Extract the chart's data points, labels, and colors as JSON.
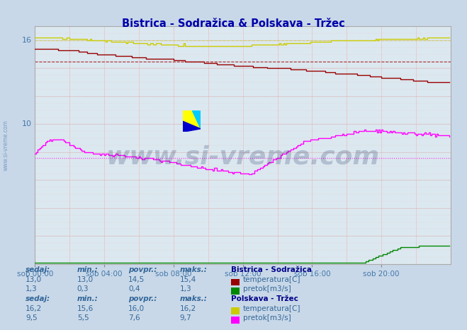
{
  "title": "Bistrica - Sodražica & Polskava - Tržec",
  "title_color": "#0000aa",
  "bg_color": "#c8d8e8",
  "plot_bg_color": "#dce8f0",
  "x_label_color": "#4477aa",
  "y_label_color": "#4477aa",
  "xlim": [
    0,
    288
  ],
  "ylim": [
    0,
    17
  ],
  "ytick_labeled": [
    10,
    16
  ],
  "xtick_labels": [
    "sob 00:00",
    "sob 04:00",
    "sob 08:00",
    "sob 12:00",
    "sob 16:00",
    "sob 20:00"
  ],
  "xtick_positions": [
    0,
    48,
    96,
    144,
    192,
    240
  ],
  "watermark": "www.si-vreme.com",
  "watermark_color": "#1a3060",
  "watermark_alpha": 0.22,
  "legend_title1": "Bistrica - Sodražica",
  "legend_title2": "Polskava - Tržec",
  "legend_color": "#000088",
  "sedaj_label": "sedaj:",
  "min_label": "min.:",
  "povpr_label": "povpr.:",
  "maks_label": "maks.:",
  "bistrica_temp_sedaj": "13,0",
  "bistrica_temp_min": "13,0",
  "bistrica_temp_povpr": "14,5",
  "bistrica_temp_maks": "15,4",
  "bistrica_flow_sedaj": "1,3",
  "bistrica_flow_min": "0,3",
  "bistrica_flow_povpr": "0,4",
  "bistrica_flow_maks": "1,3",
  "polskava_temp_sedaj": "16,2",
  "polskava_temp_min": "15,6",
  "polskava_temp_povpr": "16,0",
  "polskava_temp_maks": "16,2",
  "polskava_flow_sedaj": "9,5",
  "polskava_flow_min": "5,5",
  "polskava_flow_povpr": "7,6",
  "polskava_flow_maks": "9,7",
  "temp_label": "temperatura[C]",
  "flow_label": "pretok[m3/s]",
  "bistrica_temp_color": "#990000",
  "bistrica_flow_color": "#008800",
  "polskava_temp_color": "#cccc00",
  "polskava_flow_color": "#ff00ff",
  "avg_bistrica_temp": 14.5,
  "avg_bistrica_flow": 0.4,
  "avg_polskava_temp": 16.0,
  "avg_polskava_flow": 7.6,
  "vgrid_color": "#e8b0b0",
  "hgrid_color": "#d0b0b0",
  "hgrid_major_color": "#e0c8c8"
}
